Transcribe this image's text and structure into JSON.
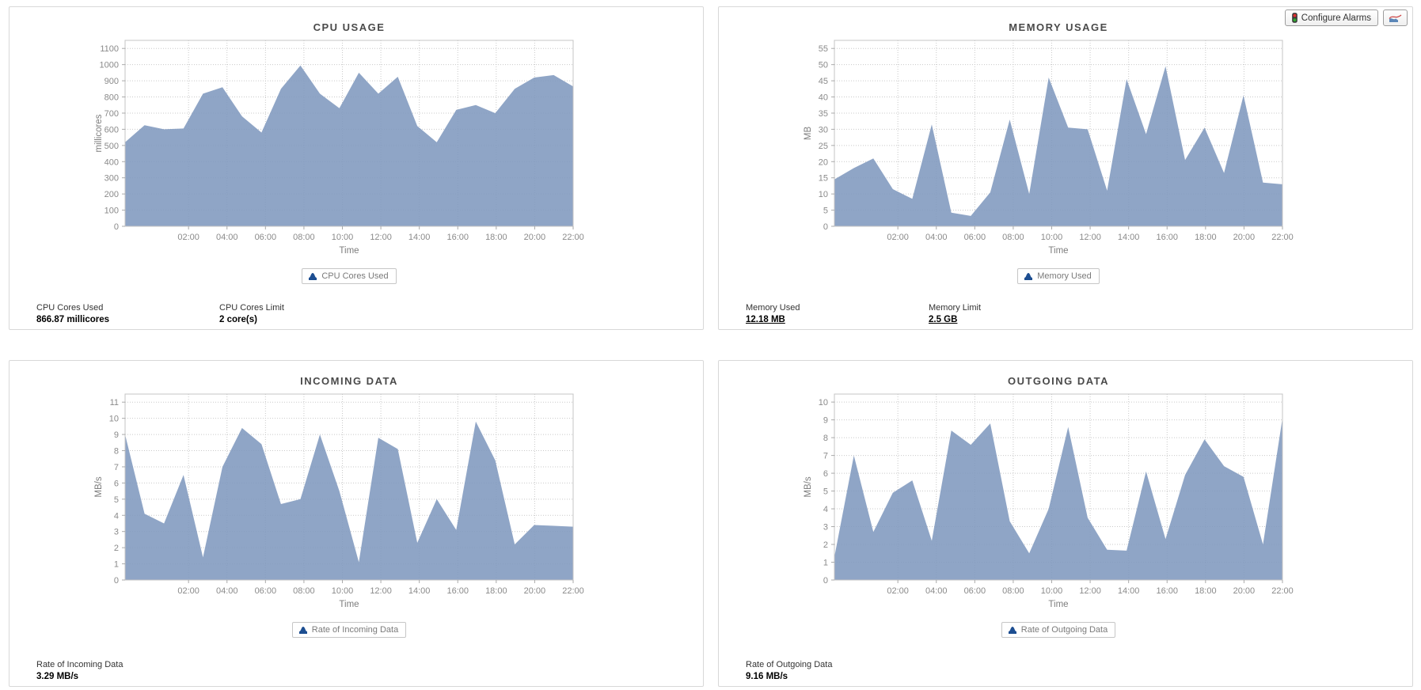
{
  "toolbar": {
    "configure_alarms_label": "Configure Alarms",
    "alarms_icon": "traffic-light-icon",
    "chart_button_icon": "area-chart-icon"
  },
  "colors": {
    "area_fill": "#7F99BE",
    "legend_icon": "#1D4E91",
    "grid_line": "#C9C9C9",
    "axis_text": "#8A8A8A",
    "title_text": "#4A4A4A",
    "panel_border": "#D8D8D8"
  },
  "chart_data": [
    {
      "type": "area",
      "title": "CPU USAGE",
      "ylabel": "millicores",
      "xlabel": "Time",
      "legend": "CPU Cores Used",
      "grid": true,
      "legend_position": "bottom",
      "ylim": [
        0,
        1150
      ],
      "y_ticks": [
        0,
        100,
        200,
        300,
        400,
        500,
        600,
        700,
        800,
        900,
        1000,
        1100
      ],
      "x_domain": {
        "offset": 1.3,
        "span": 23.3
      },
      "x_ticks": [
        {
          "h": 2,
          "label": "02:00"
        },
        {
          "h": 4,
          "label": "04:00"
        },
        {
          "h": 6,
          "label": "06:00"
        },
        {
          "h": 8,
          "label": "08:00"
        },
        {
          "h": 10,
          "label": "10:00"
        },
        {
          "h": 12,
          "label": "12:00"
        },
        {
          "h": 14,
          "label": "14:00"
        },
        {
          "h": 16,
          "label": "16:00"
        },
        {
          "h": 18,
          "label": "18:00"
        },
        {
          "h": 20,
          "label": "20:00"
        },
        {
          "h": 22,
          "label": "22:00"
        }
      ],
      "values": [
        520,
        625,
        600,
        605,
        820,
        860,
        680,
        580,
        850,
        995,
        820,
        730,
        950,
        820,
        925,
        620,
        520,
        720,
        750,
        700,
        850,
        920,
        935,
        865
      ],
      "stats": [
        {
          "label": "CPU Cores Used",
          "value": "866.87 millicores",
          "link": false
        },
        {
          "label": "CPU Cores Limit",
          "value": "2 core(s)",
          "link": false
        }
      ]
    },
    {
      "type": "area",
      "title": "MEMORY USAGE",
      "ylabel": "MB",
      "xlabel": "Time",
      "legend": "Memory Used",
      "grid": true,
      "legend_position": "bottom",
      "ylim": [
        0,
        57.5
      ],
      "y_ticks": [
        0,
        5,
        10,
        15,
        20,
        25,
        30,
        35,
        40,
        45,
        50,
        55
      ],
      "x_domain": {
        "offset": 1.3,
        "span": 23.3
      },
      "x_ticks": [
        {
          "h": 2,
          "label": "02:00"
        },
        {
          "h": 4,
          "label": "04:00"
        },
        {
          "h": 6,
          "label": "06:00"
        },
        {
          "h": 8,
          "label": "08:00"
        },
        {
          "h": 10,
          "label": "10:00"
        },
        {
          "h": 12,
          "label": "12:00"
        },
        {
          "h": 14,
          "label": "14:00"
        },
        {
          "h": 16,
          "label": "16:00"
        },
        {
          "h": 18,
          "label": "18:00"
        },
        {
          "h": 20,
          "label": "20:00"
        },
        {
          "h": 22,
          "label": "22:00"
        }
      ],
      "values": [
        14.5,
        18,
        21,
        11.5,
        8.5,
        31.5,
        4.2,
        3.2,
        10.5,
        33,
        10,
        46,
        30.5,
        30,
        11,
        45.5,
        28.5,
        49.5,
        20.5,
        30.5,
        16.5,
        40.5,
        13.5,
        13
      ],
      "stats": [
        {
          "label": "Memory Used",
          "value": "12.18 MB",
          "link": true
        },
        {
          "label": "Memory Limit",
          "value": "2.5 GB",
          "link": true
        }
      ]
    },
    {
      "type": "area",
      "title": "INCOMING DATA",
      "ylabel": "MB/s",
      "xlabel": "Time",
      "legend": "Rate of Incoming Data",
      "grid": true,
      "legend_position": "bottom",
      "ylim": [
        0,
        11.5
      ],
      "y_ticks": [
        0,
        1,
        2,
        3,
        4,
        5,
        6,
        7,
        8,
        9,
        10,
        11
      ],
      "x_domain": {
        "offset": 1.3,
        "span": 23.3
      },
      "x_ticks": [
        {
          "h": 2,
          "label": "02:00"
        },
        {
          "h": 4,
          "label": "04:00"
        },
        {
          "h": 6,
          "label": "06:00"
        },
        {
          "h": 8,
          "label": "08:00"
        },
        {
          "h": 10,
          "label": "10:00"
        },
        {
          "h": 12,
          "label": "12:00"
        },
        {
          "h": 14,
          "label": "14:00"
        },
        {
          "h": 16,
          "label": "16:00"
        },
        {
          "h": 18,
          "label": "18:00"
        },
        {
          "h": 20,
          "label": "20:00"
        },
        {
          "h": 22,
          "label": "22:00"
        }
      ],
      "values": [
        9.0,
        4.1,
        3.5,
        6.5,
        1.4,
        7.0,
        9.4,
        8.4,
        4.7,
        5.0,
        9.0,
        5.5,
        1.1,
        8.8,
        8.1,
        2.3,
        5.0,
        3.1,
        9.8,
        7.4,
        2.2,
        3.4,
        3.35,
        3.3
      ],
      "stats": [
        {
          "label": "Rate of Incoming Data",
          "value": "3.29 MB/s",
          "link": false
        }
      ]
    },
    {
      "type": "area",
      "title": "OUTGOING DATA",
      "ylabel": "MB/s",
      "xlabel": "Time",
      "legend": "Rate of Outgoing Data",
      "grid": true,
      "legend_position": "bottom",
      "ylim": [
        0,
        10.45
      ],
      "y_ticks": [
        0,
        1,
        2,
        3,
        4,
        5,
        6,
        7,
        8,
        9,
        10
      ],
      "x_domain": {
        "offset": 1.3,
        "span": 23.3
      },
      "x_ticks": [
        {
          "h": 2,
          "label": "02:00"
        },
        {
          "h": 4,
          "label": "04:00"
        },
        {
          "h": 6,
          "label": "06:00"
        },
        {
          "h": 8,
          "label": "08:00"
        },
        {
          "h": 10,
          "label": "10:00"
        },
        {
          "h": 12,
          "label": "12:00"
        },
        {
          "h": 14,
          "label": "14:00"
        },
        {
          "h": 16,
          "label": "16:00"
        },
        {
          "h": 18,
          "label": "18:00"
        },
        {
          "h": 20,
          "label": "20:00"
        },
        {
          "h": 22,
          "label": "22:00"
        }
      ],
      "values": [
        1.3,
        7.0,
        2.7,
        4.9,
        5.6,
        2.2,
        8.4,
        7.6,
        8.8,
        3.3,
        1.5,
        4.0,
        8.6,
        3.5,
        1.7,
        1.65,
        6.1,
        2.3,
        5.9,
        7.9,
        6.4,
        5.8,
        2.0,
        9.1
      ],
      "stats": [
        {
          "label": "Rate of Outgoing Data",
          "value": "9.16 MB/s",
          "link": false
        }
      ]
    }
  ]
}
